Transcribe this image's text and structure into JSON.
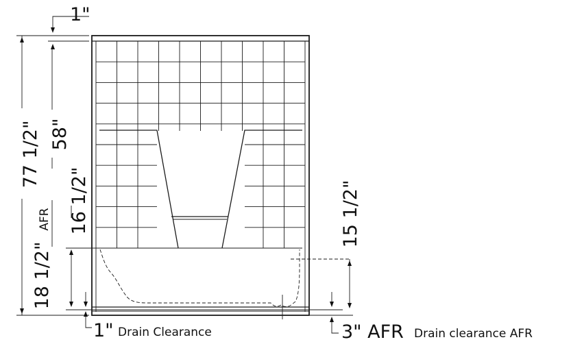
{
  "diagram": {
    "dimensions": {
      "top_thickness": "1\"",
      "overall_height": "77 1/2\"",
      "wall_height": "58\"",
      "shelf_height": "16 1/2\"",
      "afr_label": "AFR",
      "tub_height": "18 1/2\"",
      "valve_height": "15 1/2\"",
      "drain_clearance_value": "1\"",
      "drain_clearance_label": "Drain Clearance",
      "drain_afr_value": "3\" AFR",
      "drain_afr_label": "Drain clearance AFR"
    }
  }
}
